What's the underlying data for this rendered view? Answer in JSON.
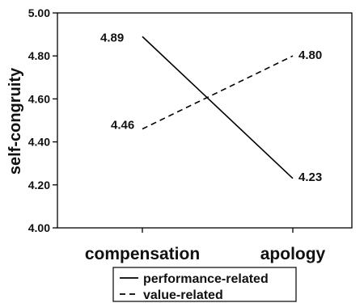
{
  "chart_data": {
    "type": "line",
    "ylabel": "self-congruity",
    "xlabel": "",
    "categories": [
      "compensation",
      "apology"
    ],
    "ylim": [
      4.0,
      5.0
    ],
    "yticks": [
      "4.00",
      "4.20",
      "4.40",
      "4.60",
      "4.80",
      "5.00"
    ],
    "legend_position": "bottom",
    "series": [
      {
        "name": "performance-related",
        "style": "solid",
        "values": [
          4.89,
          4.23
        ],
        "labels": [
          "4.89",
          "4.23"
        ]
      },
      {
        "name": "value-related",
        "style": "dashed",
        "values": [
          4.46,
          4.8
        ],
        "labels": [
          "4.46",
          "4.80"
        ]
      }
    ]
  }
}
